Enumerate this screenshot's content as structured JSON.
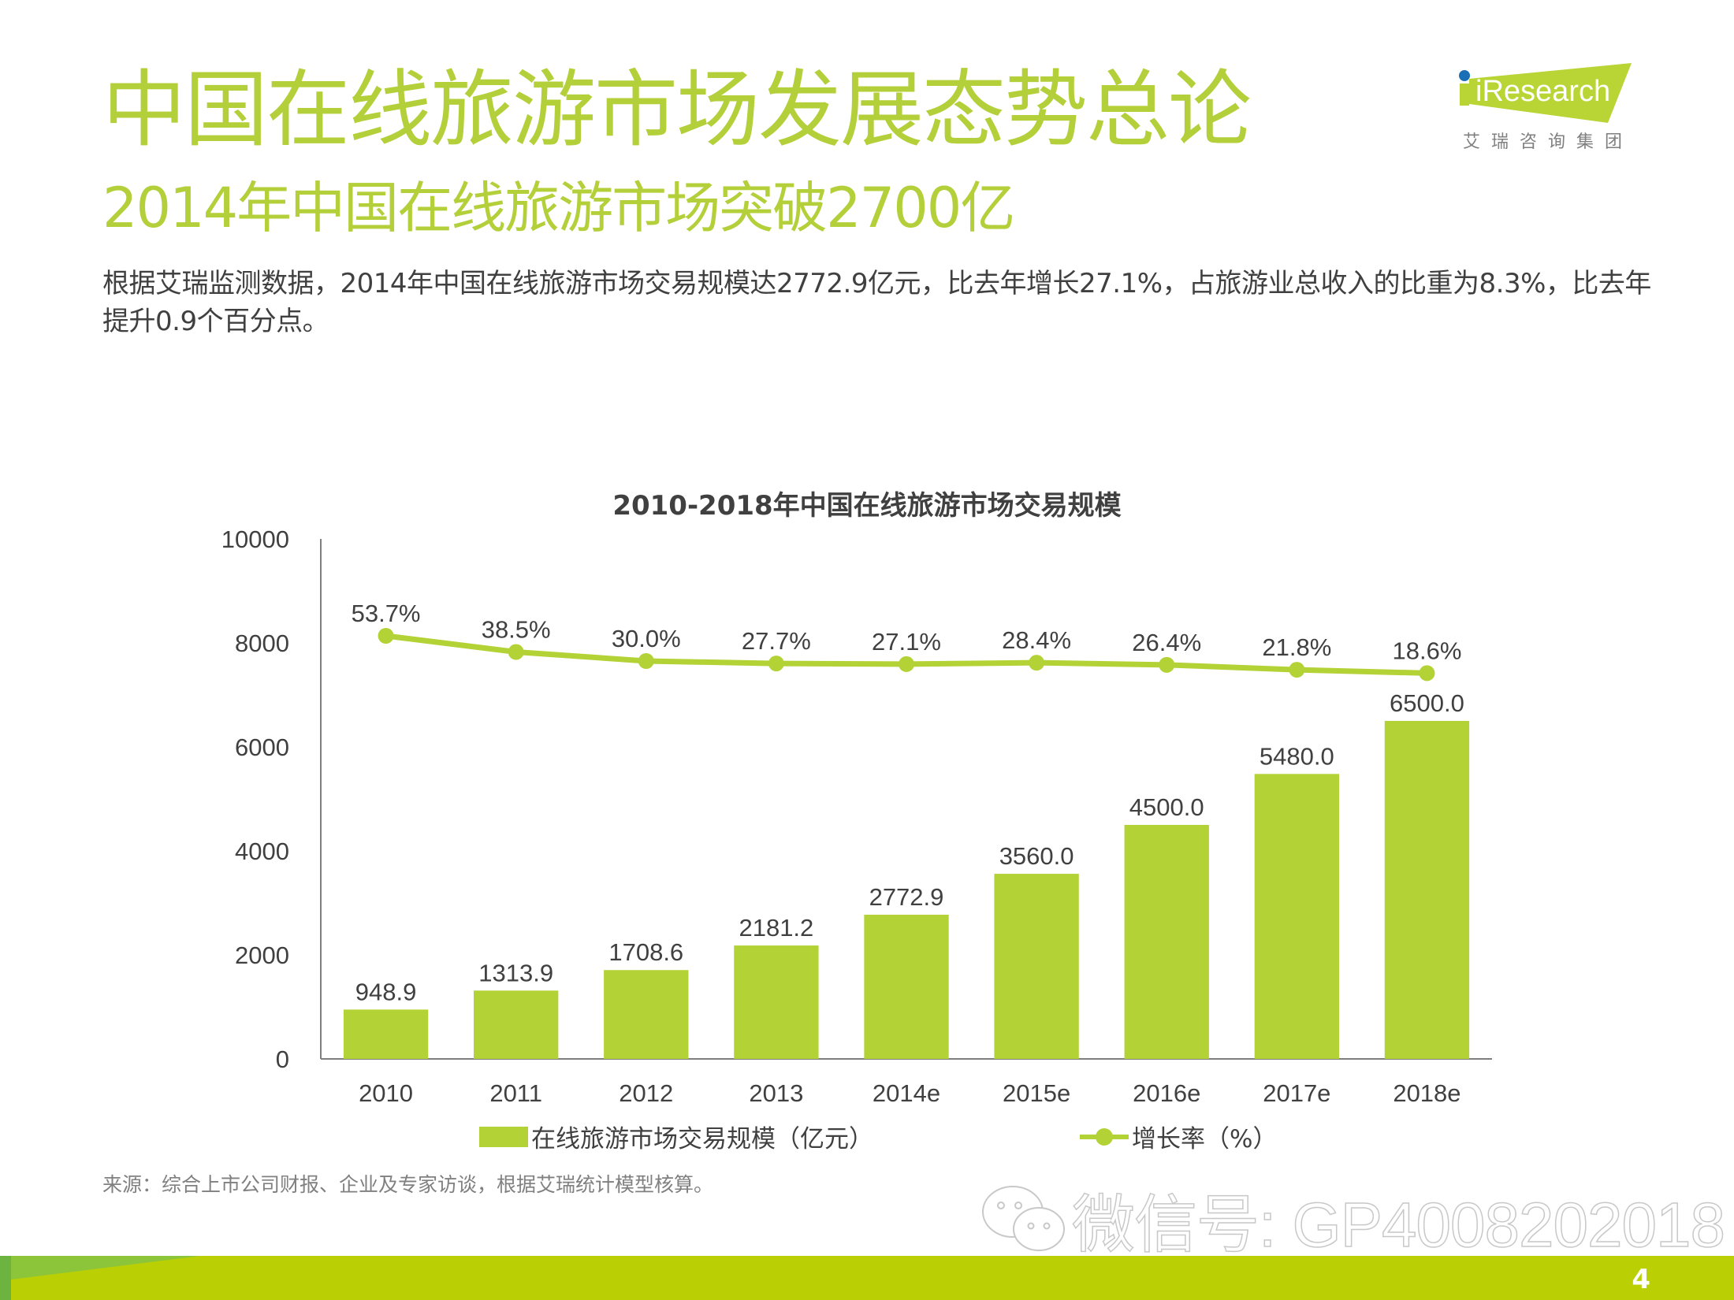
{
  "header": {
    "title": "中国在线旅游市场发展态势总论",
    "subtitle": "2014年中国在线旅游市场突破2700亿",
    "body": "根据艾瑞监测数据，2014年中国在线旅游市场交易规模达2772.9亿元，比去年增长27.1%，占旅游业总收入的比重为8.3%，比去年提升0.9个百分点。"
  },
  "logo": {
    "brand": "iResearch",
    "tagline": "艾瑞咨询集团",
    "accent_color": "#b3cf3a",
    "dot_color": "#1a6fb5"
  },
  "chart_data": {
    "type": "bar",
    "title": "2010-2018年中国在线旅游市场交易规模",
    "categories": [
      "2010",
      "2011",
      "2012",
      "2013",
      "2014e",
      "2015e",
      "2016e",
      "2017e",
      "2018e"
    ],
    "series": [
      {
        "name": "在线旅游市场交易规模（亿元）",
        "type": "bar",
        "values": [
          948.9,
          1313.9,
          1708.6,
          2181.2,
          2772.9,
          3560.0,
          4500.0,
          5480.0,
          6500.0
        ],
        "labels": [
          "948.9",
          "1313.9",
          "1708.6",
          "2181.2",
          "2772.9",
          "3560.0",
          "4500.0",
          "5480.0",
          "6500.0"
        ],
        "color": "#b3d236"
      },
      {
        "name": "增长率（%）",
        "type": "line",
        "values": [
          53.7,
          38.5,
          30.0,
          27.7,
          27.1,
          28.4,
          26.4,
          21.8,
          18.6
        ],
        "labels": [
          "53.7%",
          "38.5%",
          "30.0%",
          "27.7%",
          "27.1%",
          "28.4%",
          "26.4%",
          "21.8%",
          "18.6%"
        ],
        "color": "#b3d236",
        "axis": "secondary (hidden)"
      }
    ],
    "y_ticks": [
      "0",
      "2000",
      "4000",
      "6000",
      "8000",
      "10000"
    ],
    "ylim": [
      0,
      10000
    ],
    "xlabel": "",
    "ylabel": "",
    "grid": false,
    "legend": "bottom"
  },
  "source": "来源：综合上市公司财报、企业及专家访谈，根据艾瑞统计模型核算。",
  "watermark": "微信号: GP4008202018",
  "footer": {
    "page_number": "4",
    "bar_color": "#bad004"
  }
}
